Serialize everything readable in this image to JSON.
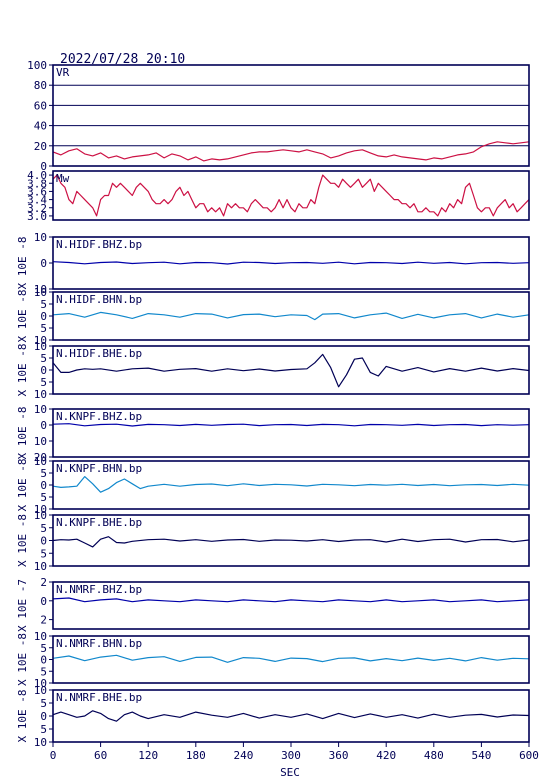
{
  "header": {
    "timestamp": "2022/07/28 20:10"
  },
  "xaxis": {
    "label": "SEC",
    "min": 0,
    "max": 600,
    "ticks": [
      0,
      60,
      120,
      180,
      240,
      300,
      360,
      420,
      480,
      540,
      600
    ]
  },
  "colors": {
    "frame": "#000055",
    "vr": "#cc1144",
    "mw": "#cc1144",
    "bhz": "#0000aa",
    "bhn": "#1188cc",
    "bhe": "#000055",
    "grid": "#000055"
  },
  "chart_data": [
    {
      "type": "line",
      "label": "VR",
      "ylim": [
        0,
        100
      ],
      "yticks": [
        0,
        20,
        40,
        60,
        80,
        100
      ],
      "ytick_labels": [
        "0",
        "20",
        "40",
        "60",
        "80",
        "100"
      ],
      "grid": true,
      "color": "vr",
      "x": [
        0,
        10,
        20,
        30,
        40,
        50,
        60,
        70,
        80,
        90,
        100,
        110,
        120,
        130,
        140,
        150,
        160,
        170,
        180,
        190,
        200,
        210,
        220,
        230,
        240,
        250,
        260,
        270,
        280,
        290,
        300,
        310,
        320,
        330,
        340,
        350,
        360,
        370,
        380,
        390,
        400,
        410,
        420,
        430,
        440,
        450,
        460,
        470,
        480,
        490,
        500,
        510,
        520,
        530,
        540,
        550,
        560,
        570,
        580,
        590,
        600
      ],
      "y": [
        14,
        11,
        15,
        17,
        12,
        10,
        13,
        8,
        10,
        7,
        9,
        10,
        11,
        13,
        8,
        12,
        10,
        6,
        9,
        5,
        7,
        6,
        7,
        9,
        11,
        13,
        14,
        14,
        15,
        16,
        15,
        14,
        16,
        14,
        12,
        8,
        10,
        13,
        15,
        16,
        13,
        10,
        9,
        11,
        9,
        8,
        7,
        6,
        8,
        7,
        9,
        11,
        12,
        14,
        19,
        22,
        24,
        23,
        22,
        23,
        24
      ]
    },
    {
      "type": "line",
      "label": "Mw",
      "ylim": [
        2.9,
        4.1
      ],
      "yticks": [
        3.0,
        3.2,
        3.4,
        3.6,
        3.8,
        4.0
      ],
      "ytick_labels": [
        "3.0",
        "3.2",
        "3.4",
        "3.6",
        "3.8",
        "4.0"
      ],
      "grid": false,
      "color": "mw",
      "x": [
        0,
        5,
        10,
        15,
        20,
        25,
        30,
        35,
        40,
        45,
        50,
        55,
        60,
        65,
        70,
        75,
        80,
        85,
        90,
        95,
        100,
        105,
        110,
        115,
        120,
        125,
        130,
        135,
        140,
        145,
        150,
        155,
        160,
        165,
        170,
        175,
        180,
        185,
        190,
        195,
        200,
        205,
        210,
        215,
        220,
        225,
        230,
        235,
        240,
        245,
        250,
        255,
        260,
        265,
        270,
        275,
        280,
        285,
        290,
        295,
        300,
        305,
        310,
        315,
        320,
        325,
        330,
        335,
        340,
        345,
        350,
        355,
        360,
        365,
        370,
        375,
        380,
        385,
        390,
        395,
        400,
        405,
        410,
        415,
        420,
        425,
        430,
        435,
        440,
        445,
        450,
        455,
        460,
        465,
        470,
        475,
        480,
        485,
        490,
        495,
        500,
        505,
        510,
        515,
        520,
        525,
        530,
        535,
        540,
        545,
        550,
        555,
        560,
        565,
        570,
        575,
        580,
        585,
        590,
        595,
        600
      ],
      "y": [
        3.9,
        4.0,
        3.8,
        3.7,
        3.4,
        3.3,
        3.6,
        3.5,
        3.4,
        3.3,
        3.2,
        3.0,
        3.4,
        3.5,
        3.5,
        3.8,
        3.7,
        3.8,
        3.7,
        3.6,
        3.5,
        3.7,
        3.8,
        3.7,
        3.6,
        3.4,
        3.3,
        3.3,
        3.4,
        3.3,
        3.4,
        3.6,
        3.7,
        3.5,
        3.6,
        3.4,
        3.2,
        3.3,
        3.3,
        3.1,
        3.2,
        3.1,
        3.2,
        3.0,
        3.3,
        3.2,
        3.3,
        3.2,
        3.2,
        3.1,
        3.3,
        3.4,
        3.3,
        3.2,
        3.2,
        3.1,
        3.2,
        3.4,
        3.2,
        3.4,
        3.2,
        3.1,
        3.3,
        3.2,
        3.2,
        3.4,
        3.3,
        3.7,
        4.0,
        3.9,
        3.8,
        3.8,
        3.7,
        3.9,
        3.8,
        3.7,
        3.8,
        3.9,
        3.7,
        3.8,
        3.9,
        3.6,
        3.8,
        3.7,
        3.6,
        3.5,
        3.4,
        3.4,
        3.3,
        3.3,
        3.2,
        3.3,
        3.1,
        3.1,
        3.2,
        3.1,
        3.1,
        3.0,
        3.2,
        3.1,
        3.3,
        3.2,
        3.4,
        3.3,
        3.7,
        3.8,
        3.5,
        3.2,
        3.1,
        3.2,
        3.2,
        3.0,
        3.2,
        3.3,
        3.4,
        3.2,
        3.3,
        3.1,
        3.2,
        3.3,
        3.4
      ]
    },
    {
      "type": "line",
      "label": "N.HIDF.BHZ.bp",
      "ylabel": "X 10E -8",
      "ylim": [
        -10,
        10
      ],
      "yticks": [
        -10,
        0,
        10
      ],
      "ytick_labels": [
        "10",
        "0",
        "10"
      ],
      "color": "bhz",
      "x": [
        0,
        20,
        40,
        60,
        80,
        100,
        120,
        140,
        160,
        180,
        200,
        220,
        240,
        260,
        280,
        300,
        320,
        340,
        360,
        380,
        400,
        420,
        440,
        460,
        480,
        500,
        520,
        540,
        560,
        580,
        600
      ],
      "y": [
        0.5,
        0.2,
        -0.3,
        0.2,
        0.4,
        -0.2,
        0.1,
        0.3,
        -0.3,
        0.2,
        0.1,
        -0.4,
        0.3,
        0.2,
        -0.2,
        0.1,
        0.2,
        -0.1,
        0.3,
        -0.3,
        0.2,
        0.1,
        -0.2,
        0.3,
        -0.1,
        0.2,
        -0.3,
        0.1,
        0.2,
        -0.1,
        0.1
      ]
    },
    {
      "type": "line",
      "label": "N.HIDF.BHN.bp",
      "ylabel": "X 10E -8",
      "ylim": [
        -10,
        10
      ],
      "yticks": [
        -10,
        -5,
        0,
        5,
        10
      ],
      "ytick_labels": [
        "10",
        "5",
        "0",
        "5",
        "10"
      ],
      "color": "bhn",
      "x": [
        0,
        20,
        40,
        60,
        80,
        100,
        120,
        140,
        160,
        180,
        200,
        220,
        240,
        260,
        280,
        300,
        320,
        330,
        340,
        360,
        380,
        400,
        420,
        440,
        460,
        480,
        500,
        520,
        540,
        560,
        580,
        600
      ],
      "y": [
        0.5,
        1.0,
        -0.5,
        1.5,
        0.5,
        -1.0,
        1.0,
        0.5,
        -0.5,
        1.0,
        0.8,
        -0.8,
        0.6,
        0.8,
        -0.3,
        0.5,
        0.2,
        -1.5,
        0.8,
        1.0,
        -0.8,
        0.5,
        1.2,
        -1.0,
        0.7,
        -0.8,
        0.5,
        1.0,
        -0.8,
        0.8,
        -0.5,
        0.5
      ]
    },
    {
      "type": "line",
      "label": "N.HIDF.BHE.bp",
      "ylabel": "X 10E -8",
      "ylim": [
        -10,
        10
      ],
      "yticks": [
        -10,
        -5,
        0,
        5,
        10
      ],
      "ytick_labels": [
        "10",
        "5",
        "0",
        "5",
        "10"
      ],
      "color": "bhe",
      "x": [
        0,
        5,
        10,
        20,
        30,
        40,
        50,
        60,
        80,
        100,
        120,
        140,
        160,
        180,
        200,
        220,
        240,
        260,
        280,
        300,
        320,
        330,
        340,
        350,
        360,
        370,
        380,
        390,
        400,
        410,
        420,
        440,
        460,
        480,
        500,
        520,
        540,
        560,
        580,
        600
      ],
      "y": [
        3.0,
        1.0,
        -1.0,
        -1.0,
        0.0,
        0.5,
        0.3,
        0.5,
        -0.5,
        0.5,
        0.8,
        -0.5,
        0.3,
        0.6,
        -0.5,
        0.5,
        -0.3,
        0.4,
        -0.4,
        0.2,
        0.5,
        3.0,
        6.5,
        1.0,
        -7.0,
        -2.0,
        4.5,
        5.0,
        -1.0,
        -2.5,
        1.5,
        -0.5,
        1.0,
        -0.8,
        0.6,
        -0.5,
        0.8,
        -0.4,
        0.6,
        -0.2
      ]
    },
    {
      "type": "line",
      "label": "N.KNPF.BHZ.bp",
      "ylabel": "X 10E -8",
      "ylim": [
        -20,
        10
      ],
      "yticks": [
        -20,
        -10,
        0,
        10
      ],
      "ytick_labels": [
        "20",
        "10",
        "0",
        "10"
      ],
      "color": "bhz",
      "x": [
        0,
        20,
        40,
        60,
        80,
        100,
        120,
        140,
        160,
        180,
        200,
        220,
        240,
        260,
        280,
        300,
        320,
        340,
        360,
        380,
        400,
        420,
        440,
        460,
        480,
        500,
        520,
        540,
        560,
        580,
        600
      ],
      "y": [
        0.5,
        0.8,
        -0.5,
        0.3,
        0.5,
        -0.6,
        0.4,
        0.2,
        -0.3,
        0.4,
        -0.2,
        0.3,
        0.5,
        -0.4,
        0.2,
        0.3,
        -0.3,
        0.4,
        0.2,
        -0.5,
        0.3,
        0.2,
        -0.2,
        0.4,
        -0.3,
        0.2,
        0.3,
        -0.4,
        0.2,
        -0.1,
        0.2
      ]
    },
    {
      "type": "line",
      "label": "N.KNPF.BHN.bp",
      "ylabel": "X 10E -8",
      "ylim": [
        -10,
        10
      ],
      "yticks": [
        -10,
        -5,
        0,
        5,
        10
      ],
      "ytick_labels": [
        "10",
        "5",
        "0",
        "5",
        "10"
      ],
      "color": "bhn",
      "x": [
        0,
        10,
        20,
        30,
        40,
        50,
        60,
        70,
        80,
        90,
        100,
        110,
        120,
        140,
        160,
        180,
        200,
        220,
        240,
        260,
        280,
        300,
        320,
        340,
        360,
        380,
        400,
        420,
        440,
        460,
        480,
        500,
        520,
        540,
        560,
        580,
        600
      ],
      "y": [
        -0.5,
        -1.0,
        -0.8,
        -0.5,
        3.5,
        0.5,
        -3.0,
        -1.5,
        1.0,
        2.5,
        0.5,
        -1.5,
        -0.5,
        0.3,
        -0.5,
        0.2,
        0.4,
        -0.3,
        0.5,
        -0.2,
        0.3,
        0.1,
        -0.4,
        0.3,
        0.1,
        -0.3,
        0.2,
        -0.1,
        0.3,
        -0.2,
        0.2,
        -0.3,
        0.1,
        0.2,
        -0.2,
        0.3,
        -0.1
      ]
    },
    {
      "type": "line",
      "label": "N.KNPF.BHE.bp",
      "ylabel": "X 10E -8",
      "ylim": [
        -10,
        10
      ],
      "yticks": [
        -10,
        -5,
        0,
        5,
        10
      ],
      "ytick_labels": [
        "10",
        "5",
        "0",
        "5",
        "10"
      ],
      "color": "bhe",
      "x": [
        0,
        10,
        20,
        30,
        40,
        50,
        60,
        70,
        80,
        90,
        100,
        120,
        140,
        160,
        180,
        200,
        220,
        240,
        260,
        280,
        300,
        320,
        340,
        360,
        380,
        400,
        420,
        440,
        460,
        480,
        500,
        520,
        540,
        560,
        580,
        600
      ],
      "y": [
        0.0,
        0.3,
        0.2,
        0.5,
        -1.0,
        -2.5,
        0.5,
        1.5,
        -0.8,
        -1.0,
        -0.3,
        0.3,
        0.5,
        -0.2,
        0.3,
        -0.3,
        0.2,
        0.4,
        -0.3,
        0.2,
        0.1,
        -0.2,
        0.3,
        -0.4,
        0.2,
        0.3,
        -0.6,
        0.5,
        -0.4,
        0.3,
        0.5,
        -0.6,
        0.3,
        0.4,
        -0.5,
        0.2
      ]
    },
    {
      "type": "line",
      "label": "N.NMRF.BHZ.bp",
      "ylabel": "X 10E -7",
      "ylim": [
        -3,
        2
      ],
      "yticks": [
        -2,
        0,
        2
      ],
      "ytick_labels": [
        "2",
        "0",
        "2"
      ],
      "color": "bhz",
      "x": [
        0,
        20,
        40,
        60,
        80,
        100,
        120,
        140,
        160,
        180,
        200,
        220,
        240,
        260,
        280,
        300,
        320,
        340,
        360,
        380,
        400,
        420,
        440,
        460,
        480,
        500,
        520,
        540,
        560,
        580,
        600
      ],
      "y": [
        0.2,
        0.3,
        -0.1,
        0.1,
        0.2,
        -0.1,
        0.1,
        0.0,
        -0.1,
        0.1,
        0.0,
        -0.1,
        0.1,
        0.0,
        -0.1,
        0.1,
        0.0,
        -0.1,
        0.1,
        0.0,
        -0.1,
        0.1,
        -0.1,
        0.0,
        0.1,
        -0.1,
        0.0,
        0.1,
        -0.1,
        0.0,
        0.1
      ]
    },
    {
      "type": "line",
      "label": "N.NMRF.BHN.bp",
      "ylabel": "X 10E -8",
      "ylim": [
        -10,
        10
      ],
      "yticks": [
        -10,
        -5,
        0,
        5,
        10
      ],
      "ytick_labels": [
        "10",
        "5",
        "0",
        "5",
        "10"
      ],
      "color": "bhn",
      "x": [
        0,
        20,
        40,
        60,
        80,
        100,
        120,
        140,
        160,
        180,
        200,
        220,
        240,
        260,
        280,
        300,
        320,
        340,
        360,
        380,
        400,
        420,
        440,
        460,
        480,
        500,
        520,
        540,
        560,
        580,
        600
      ],
      "y": [
        0.5,
        1.5,
        -0.5,
        1.0,
        1.8,
        -0.3,
        0.8,
        1.2,
        -0.8,
        0.9,
        1.0,
        -1.2,
        0.8,
        0.5,
        -0.8,
        0.6,
        0.4,
        -0.9,
        0.5,
        0.7,
        -0.6,
        0.4,
        -0.5,
        0.6,
        -0.4,
        0.5,
        -0.6,
        0.8,
        -0.3,
        0.5,
        0.3
      ]
    },
    {
      "type": "line",
      "label": "N.NMRF.BHE.bp",
      "ylabel": "X 10E -8",
      "ylim": [
        -10,
        10
      ],
      "yticks": [
        -10,
        -5,
        0,
        5,
        10
      ],
      "ytick_labels": [
        "10",
        "5",
        "0",
        "5",
        "10"
      ],
      "color": "bhe",
      "x": [
        0,
        10,
        20,
        30,
        40,
        50,
        60,
        70,
        80,
        90,
        100,
        110,
        120,
        140,
        160,
        180,
        200,
        220,
        240,
        260,
        280,
        300,
        320,
        340,
        360,
        380,
        400,
        420,
        440,
        460,
        480,
        500,
        520,
        540,
        560,
        580,
        600
      ],
      "y": [
        0.5,
        1.5,
        0.5,
        -0.5,
        0.0,
        2.0,
        1.0,
        -1.0,
        -2.0,
        0.5,
        1.5,
        0.0,
        -1.0,
        0.5,
        -0.5,
        1.5,
        0.3,
        -0.5,
        1.0,
        -0.8,
        0.5,
        -0.5,
        0.8,
        -1.0,
        1.0,
        -0.6,
        0.8,
        -0.5,
        0.5,
        -0.8,
        0.7,
        -0.5,
        0.3,
        0.6,
        -0.4,
        0.4,
        0.2
      ]
    }
  ]
}
